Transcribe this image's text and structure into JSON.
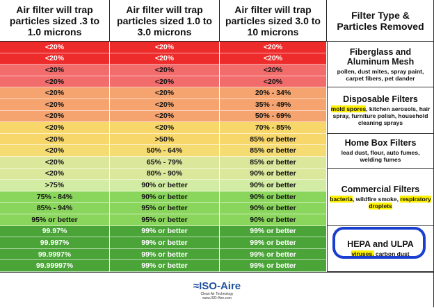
{
  "header": [
    "Air filter will trap particles sized .3 to 1.0 microns",
    "Air filter will trap particles sized 1.0 to 3.0 microns",
    "Air filter will trap particles sized 3.0 to 10 microns",
    "Filter Type & Particles Removed"
  ],
  "rows": [
    [
      "<20%",
      "<20%",
      "<20%"
    ],
    [
      "<20%",
      "<20%",
      "<20%"
    ],
    [
      "<20%",
      "<20%",
      "<20%"
    ],
    [
      "<20%",
      "<20%",
      "<20%"
    ],
    [
      "<20%",
      "<20%",
      "20% - 34%"
    ],
    [
      "<20%",
      "<20%",
      "35% - 49%"
    ],
    [
      "<20%",
      "<20%",
      "50% - 69%"
    ],
    [
      "<20%",
      "<20%",
      "70% - 85%"
    ],
    [
      "<20%",
      ">50%",
      "85% or better"
    ],
    [
      "<20%",
      "50% - 64%",
      "85% or better"
    ],
    [
      "<20%",
      "65% - 79%",
      "85% or better"
    ],
    [
      "<20%",
      "80% - 90%",
      "90% or better"
    ],
    [
      ">75%",
      "90% or better",
      "90% or better"
    ],
    [
      "75% - 84%",
      "90% or better",
      "90% or better"
    ],
    [
      "85% - 94%",
      "95% or better",
      "90% or better"
    ],
    [
      "95% or better",
      "95% or better",
      "90% or better"
    ],
    [
      "99.97%",
      "99% or better",
      "99% or better"
    ],
    [
      "99.997%",
      "99% or better",
      "99% or better"
    ],
    [
      "99.9997%",
      "99% or better",
      "99% or better"
    ],
    [
      "99.99997%",
      "99% or better",
      "99% or better"
    ]
  ],
  "groups": [
    {
      "name": "Fiberglass and Aluminum Mesh",
      "description": [
        {
          "text": "pollen, dust mites, spray paint, carpet fibers, pet dander"
        }
      ]
    },
    {
      "name": "Disposable Filters",
      "description": [
        {
          "text": "mold spores",
          "highlight": true
        },
        {
          "text": ", kitchen aerosols, hair spray, furniture polish, household cleaning sprays"
        }
      ]
    },
    {
      "name": "Home Box Filters",
      "description": [
        {
          "text": "lead dust, flour, auto fumes, welding fumes"
        }
      ]
    },
    {
      "name": "Commercial Filters",
      "description": [
        {
          "text": "bacteria",
          "highlight": true
        },
        {
          "text": ", wildfire smoke, "
        },
        {
          "text": "respiratory droplets",
          "highlight": true
        }
      ]
    },
    {
      "name": "HEPA and ULPA",
      "description": [
        {
          "text": "viruses,",
          "highlight": true
        },
        {
          "text": " carbon dust"
        }
      ]
    }
  ],
  "footer": {
    "logo": "≈ISO-Aire",
    "tagline": "Clean Air Technology",
    "url": "www.ISO-Aire.com"
  }
}
